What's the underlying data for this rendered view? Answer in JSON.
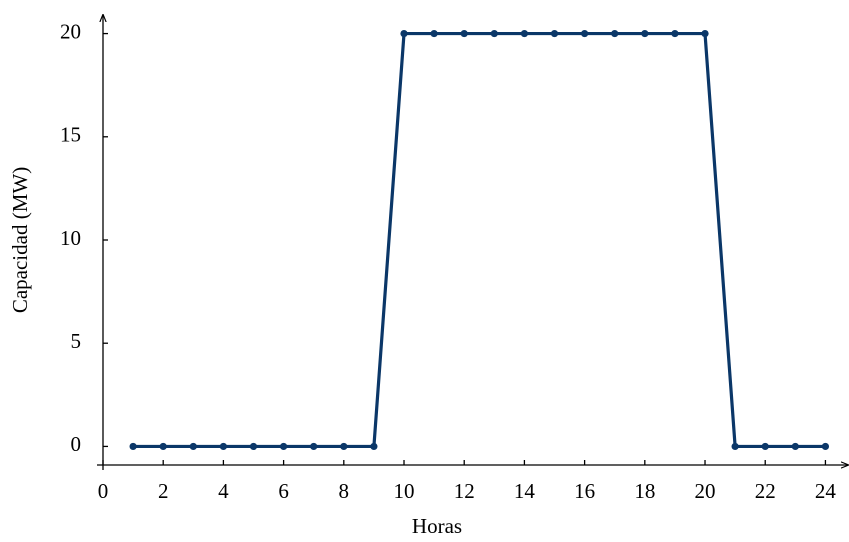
{
  "chart_data": {
    "type": "line",
    "x_label": "Horas",
    "y_label": "Capacidad (MW)",
    "x": [
      1,
      2,
      3,
      4,
      5,
      6,
      7,
      8,
      9,
      10,
      11,
      12,
      13,
      14,
      15,
      16,
      17,
      18,
      19,
      20,
      21,
      22,
      23,
      24
    ],
    "series": [
      {
        "name": "Capacidad",
        "color": "#0b3768",
        "values": [
          0,
          0,
          0,
          0,
          0,
          0,
          0,
          0,
          0,
          20,
          20,
          20,
          20,
          20,
          20,
          20,
          20,
          20,
          20,
          20,
          0,
          0,
          0,
          0
        ]
      }
    ],
    "xlim": [
      0,
      24.75
    ],
    "ylim": [
      -0.9,
      20.9
    ],
    "xticks": [
      0,
      2,
      4,
      6,
      8,
      10,
      12,
      14,
      16,
      18,
      20,
      22,
      24
    ],
    "yticks": [
      0,
      5,
      10,
      15,
      20
    ]
  }
}
